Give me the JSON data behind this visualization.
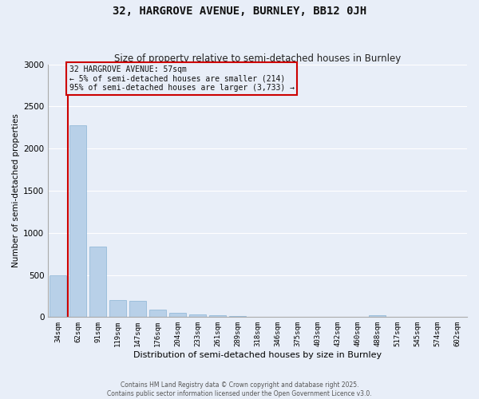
{
  "title": "32, HARGROVE AVENUE, BURNLEY, BB12 0JH",
  "subtitle": "Size of property relative to semi-detached houses in Burnley",
  "xlabel": "Distribution of semi-detached houses by size in Burnley",
  "ylabel": "Number of semi-detached properties",
  "categories": [
    "34sqm",
    "62sqm",
    "91sqm",
    "119sqm",
    "147sqm",
    "176sqm",
    "204sqm",
    "233sqm",
    "261sqm",
    "289sqm",
    "318sqm",
    "346sqm",
    "375sqm",
    "403sqm",
    "432sqm",
    "460sqm",
    "488sqm",
    "517sqm",
    "545sqm",
    "574sqm",
    "602sqm"
  ],
  "values": [
    500,
    2280,
    840,
    200,
    195,
    90,
    50,
    35,
    20,
    10,
    5,
    0,
    0,
    0,
    0,
    0,
    20,
    0,
    0,
    0,
    0
  ],
  "bar_color": "#b8d0e8",
  "bar_edge_color": "#8ab4d4",
  "vline_color": "#cc0000",
  "bg_color": "#e8eef8",
  "grid_color": "#ffffff",
  "ylim": [
    0,
    3000
  ],
  "yticks": [
    0,
    500,
    1000,
    1500,
    2000,
    2500,
    3000
  ],
  "property_label": "32 HARGROVE AVENUE: 57sqm",
  "pct_smaller_text": "← 5% of semi-detached houses are smaller (214)",
  "pct_larger_text": "95% of semi-detached houses are larger (3,733) →",
  "vline_x_index": 0.45,
  "footer_line1": "Contains HM Land Registry data © Crown copyright and database right 2025.",
  "footer_line2": "Contains public sector information licensed under the Open Government Licence v3.0."
}
